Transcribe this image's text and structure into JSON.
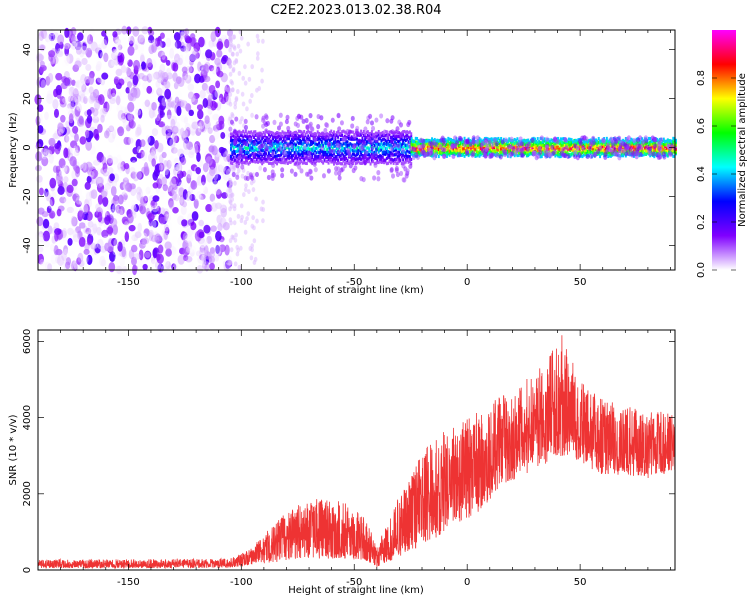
{
  "title": "C2E2.2023.013.02.38.R04",
  "chart_data": [
    {
      "type": "heatmap",
      "title": "C2E2.2023.013.02.38.R04",
      "xlabel": "Height of straight line (km)",
      "ylabel": "Frequency (Hz)",
      "xlim": [
        -190,
        92
      ],
      "ylim": [
        -50,
        48
      ],
      "x_ticks": [
        -150,
        -100,
        -50,
        0,
        50
      ],
      "y_ticks": [
        -40,
        -20,
        0,
        20,
        40
      ],
      "colorbar": {
        "label": "Normalized spectral amplitude",
        "range": [
          0,
          1
        ],
        "ticks": [
          "0.0",
          "0.2",
          "0.4",
          "0.6",
          "0.8"
        ],
        "tick_values": [
          0.0,
          0.2,
          0.4,
          0.6,
          0.8
        ],
        "colormap": [
          "#ffffff",
          "#8000ff",
          "#0000ff",
          "#00ffff",
          "#00ff00",
          "#ffff00",
          "#ff0000",
          "#ff00ff"
        ]
      },
      "description_regions": [
        {
          "x_range": [
            -190,
            -105
          ],
          "freq_range": [
            -50,
            48
          ],
          "amplitude": [
            0.0,
            0.2
          ]
        },
        {
          "x_range": [
            -105,
            -25
          ],
          "freq_range": [
            -6,
            6
          ],
          "amplitude": [
            0.1,
            0.5
          ]
        },
        {
          "x_range": [
            -25,
            92
          ],
          "freq_range": [
            -3,
            3
          ],
          "amplitude": [
            0.4,
            0.95
          ]
        }
      ]
    },
    {
      "type": "line",
      "xlabel": "Height of straight line (km)",
      "ylabel": "SNR (10 * v/v)",
      "xlim": [
        -190,
        92
      ],
      "ylim": [
        0,
        6300
      ],
      "x_ticks": [
        -150,
        -100,
        -50,
        0,
        50
      ],
      "y_ticks": [
        0,
        2000,
        4000,
        6000
      ],
      "color": "#ee3333",
      "envelope": {
        "x": [
          -190,
          -150,
          -105,
          -95,
          -85,
          -75,
          -65,
          -55,
          -45,
          -40,
          -35,
          -25,
          -15,
          -5,
          5,
          15,
          25,
          35,
          42,
          50,
          60,
          70,
          80,
          92
        ],
        "y_low": [
          50,
          50,
          60,
          150,
          200,
          300,
          300,
          300,
          250,
          80,
          200,
          500,
          800,
          1200,
          1500,
          2200,
          2500,
          2800,
          3000,
          2800,
          2500,
          2500,
          2400,
          2600
        ],
        "y_high": [
          280,
          280,
          300,
          600,
          1300,
          1700,
          1900,
          1800,
          1400,
          600,
          1300,
          2600,
          3500,
          3800,
          4200,
          4600,
          5000,
          5500,
          6200,
          5000,
          4500,
          4300,
          4200,
          4100
        ]
      }
    }
  ]
}
